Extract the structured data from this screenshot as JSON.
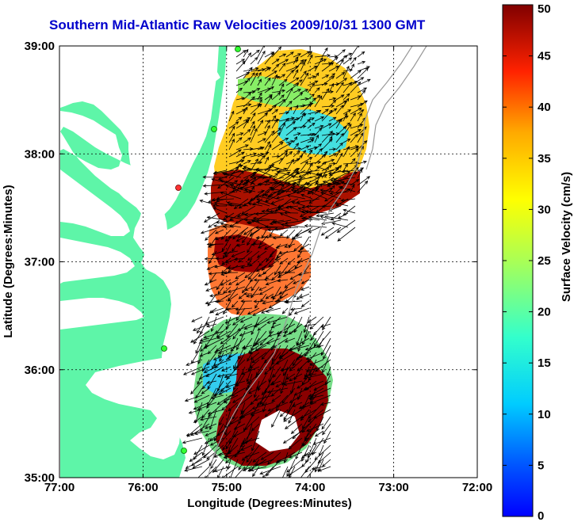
{
  "title": "Southern Mid-Atlantic Raw Velocities 2009/10/31 1300 GMT",
  "xlabel": "Longitude (Degrees:Minutes)",
  "ylabel": "Latitude (Degrees:Minutes)",
  "x_ticks": [
    "77:00",
    "76:00",
    "75:00",
    "74:00",
    "73:00",
    "72:00"
  ],
  "y_ticks": [
    "39:00",
    "38:00",
    "37:00",
    "36:00",
    "35:00"
  ],
  "colorbar": {
    "label": "Surface Velocity (cm/s)",
    "ticks": [
      "50",
      "45",
      "40",
      "35",
      "30",
      "25",
      "20",
      "15",
      "10",
      "5",
      "0"
    ],
    "min": 0,
    "max": 50
  },
  "map": {
    "lon_range": [
      -77,
      -72
    ],
    "lat_range": [
      35,
      39
    ],
    "land_color": "#5ef5a8",
    "water_color": "#ffffff",
    "arrow_color": "#000000",
    "grid": true,
    "colormap": "jet"
  }
}
